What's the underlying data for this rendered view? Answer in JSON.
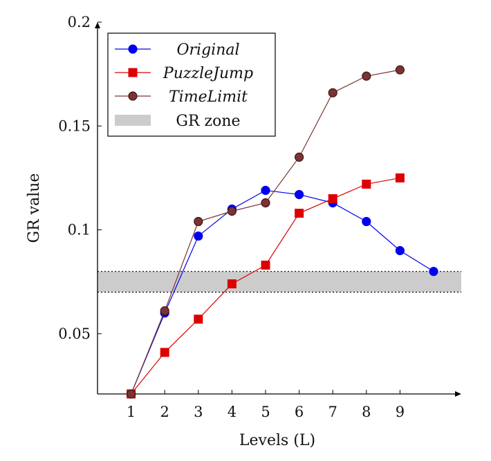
{
  "chart_data": {
    "type": "line",
    "xlabel": "Levels (L)",
    "ylabel": "GR value",
    "x_ticks": [
      1,
      2,
      3,
      4,
      5,
      6,
      7,
      8,
      9
    ],
    "y_ticks": [
      "0.05",
      "0.1",
      "0.15",
      "0.2"
    ],
    "y_tick_values": [
      0.05,
      0.1,
      0.15,
      0.2
    ],
    "xlim": [
      0,
      11
    ],
    "ylim": [
      0.021,
      0.2
    ],
    "grid": false,
    "legend_position": "top-left",
    "gr_zone": {
      "label": "GR zone",
      "y_range": [
        0.07,
        0.08
      ],
      "color": "#cccccc"
    },
    "series": [
      {
        "name": "Original",
        "color": "#0000ee",
        "marker": "circle",
        "x": [
          1,
          2,
          3,
          4,
          5,
          6,
          7,
          8,
          9,
          10
        ],
        "values": [
          0.021,
          0.06,
          0.097,
          0.11,
          0.119,
          0.117,
          0.113,
          0.104,
          0.09,
          0.08
        ]
      },
      {
        "name": "PuzzleJump",
        "color": "#dd0000",
        "marker": "square",
        "x": [
          1,
          2,
          3,
          4,
          5,
          6,
          7,
          8,
          9
        ],
        "values": [
          0.021,
          0.041,
          0.057,
          0.074,
          0.083,
          0.108,
          0.115,
          0.122,
          0.125
        ]
      },
      {
        "name": "TimeLimit",
        "color": "#7a3333",
        "marker": "circle",
        "x": [
          1,
          2,
          3,
          4,
          5,
          6,
          7,
          8,
          9
        ],
        "values": [
          0.021,
          0.061,
          0.104,
          0.109,
          0.113,
          0.135,
          0.166,
          0.174,
          0.177
        ]
      }
    ]
  }
}
